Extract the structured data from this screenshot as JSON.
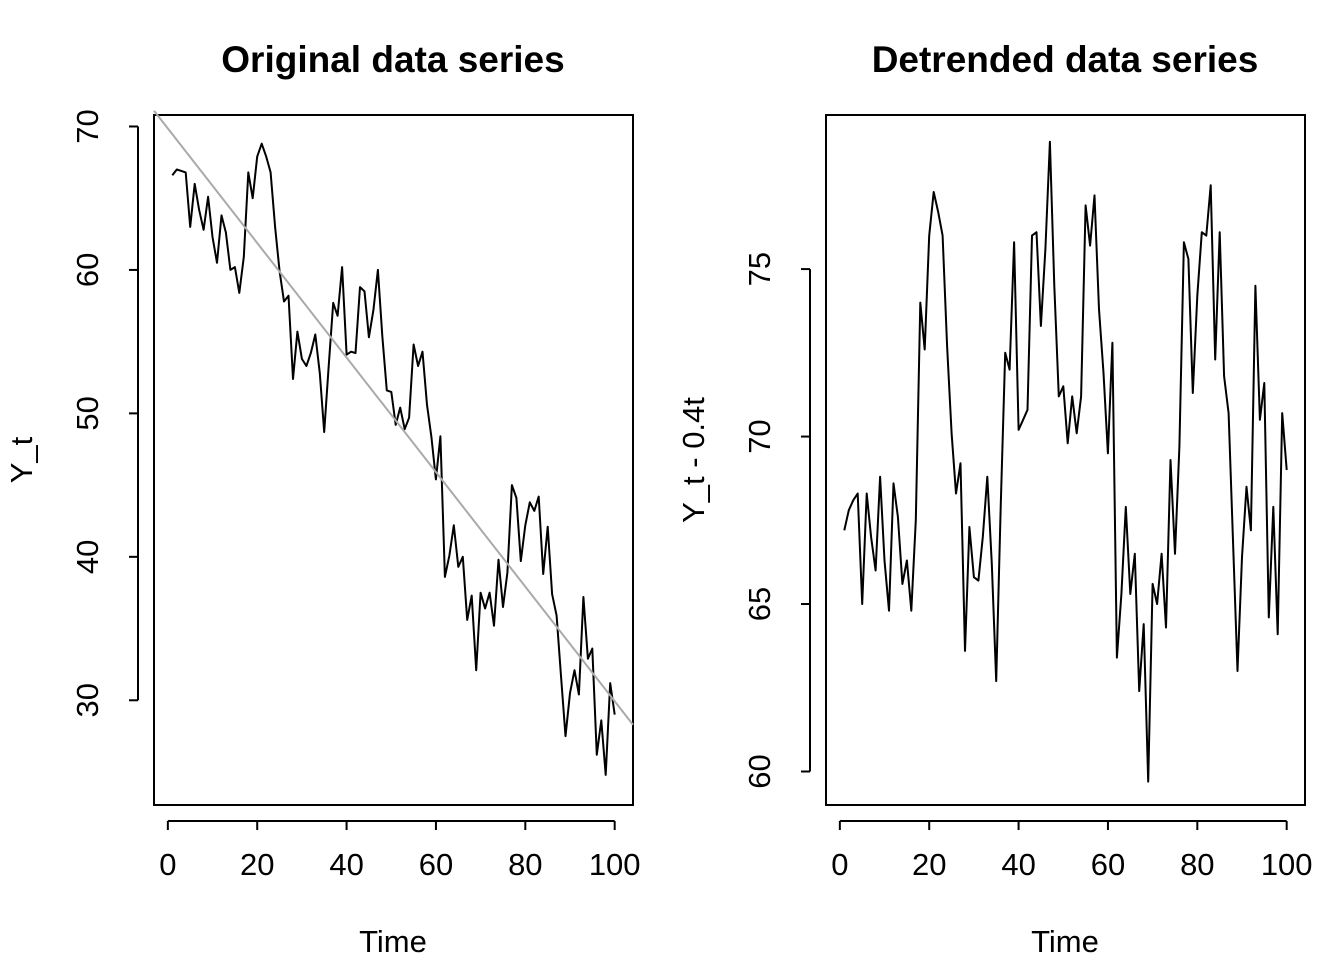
{
  "chart_data": [
    {
      "type": "line",
      "title": "Original data series",
      "xlabel": "Time",
      "ylabel": "Y_t",
      "xlim": [
        -3.1,
        104.1
      ],
      "ylim": [
        22.7,
        70.8
      ],
      "xticks": [
        0,
        20,
        40,
        60,
        80,
        100
      ],
      "yticks": [
        30,
        40,
        50,
        60,
        70
      ],
      "grid": false,
      "series": [
        {
          "color": "#000000",
          "x": [
            1,
            2,
            3,
            4,
            5,
            6,
            7,
            8,
            9,
            10,
            11,
            12,
            13,
            14,
            15,
            16,
            17,
            18,
            19,
            20,
            21,
            22,
            23,
            24,
            25,
            26,
            27,
            28,
            29,
            30,
            31,
            32,
            33,
            34,
            35,
            36,
            37,
            38,
            39,
            40,
            41,
            42,
            43,
            44,
            45,
            46,
            47,
            48,
            49,
            50,
            51,
            52,
            53,
            54,
            55,
            56,
            57,
            58,
            59,
            60,
            61,
            62,
            63,
            64,
            65,
            66,
            67,
            68,
            69,
            70,
            71,
            72,
            73,
            74,
            75,
            76,
            77,
            78,
            79,
            80,
            81,
            82,
            83,
            84,
            85,
            86,
            87,
            88,
            89,
            90,
            91,
            92,
            93,
            94,
            95,
            96,
            97,
            98,
            99,
            100
          ],
          "y": [
            66.6,
            67.0,
            66.9,
            66.8,
            63.0,
            66.0,
            64.2,
            62.8,
            65.1,
            62.3,
            60.5,
            63.8,
            62.6,
            60.0,
            60.2,
            58.4,
            60.9,
            66.8,
            65.0,
            67.9,
            68.8,
            67.9,
            66.8,
            63.0,
            59.9,
            57.8,
            58.2,
            52.4,
            55.7,
            53.8,
            53.3,
            54.2,
            55.5,
            52.8,
            48.7,
            53.3,
            57.7,
            56.8,
            60.2,
            54.1,
            54.3,
            54.2,
            58.8,
            58.5,
            55.3,
            57.2,
            60.0,
            55.4,
            51.6,
            51.5,
            49.2,
            50.4,
            48.9,
            49.7,
            54.8,
            53.3,
            54.3,
            50.6,
            48.3,
            45.4,
            48.4,
            38.6,
            40.1,
            42.2,
            39.3,
            40.0,
            35.6,
            37.3,
            32.1,
            37.5,
            36.4,
            37.5,
            35.2,
            39.8,
            36.5,
            38.9,
            45.0,
            44.1,
            39.7,
            42.2,
            43.8,
            43.2,
            44.2,
            38.8,
            42.1,
            37.4,
            35.9,
            31.6,
            27.5,
            30.5,
            32.1,
            30.4,
            37.2,
            32.9,
            33.6,
            26.2,
            28.6,
            24.8,
            31.2,
            29.0
          ]
        },
        {
          "color": "#aaaaaa",
          "x": [
            -3.1,
            104.1
          ],
          "y": [
            71.1,
            28.3
          ]
        }
      ]
    },
    {
      "type": "line",
      "title": "Detrended data series",
      "xlabel": "Time",
      "ylabel": "Y_t - 0.4t",
      "xlim": [
        -3.1,
        104.1
      ],
      "ylim": [
        59.0,
        79.6
      ],
      "xticks": [
        0,
        20,
        40,
        60,
        80,
        100
      ],
      "yticks": [
        60,
        65,
        70,
        75
      ],
      "grid": false,
      "series": [
        {
          "color": "#000000",
          "x": [
            1,
            2,
            3,
            4,
            5,
            6,
            7,
            8,
            9,
            10,
            11,
            12,
            13,
            14,
            15,
            16,
            17,
            18,
            19,
            20,
            21,
            22,
            23,
            24,
            25,
            26,
            27,
            28,
            29,
            30,
            31,
            32,
            33,
            34,
            35,
            36,
            37,
            38,
            39,
            40,
            41,
            42,
            43,
            44,
            45,
            46,
            47,
            48,
            49,
            50,
            51,
            52,
            53,
            54,
            55,
            56,
            57,
            58,
            59,
            60,
            61,
            62,
            63,
            64,
            65,
            66,
            67,
            68,
            69,
            70,
            71,
            72,
            73,
            74,
            75,
            76,
            77,
            78,
            79,
            80,
            81,
            82,
            83,
            84,
            85,
            86,
            87,
            88,
            89,
            90,
            91,
            92,
            93,
            94,
            95,
            96,
            97,
            98,
            99,
            100
          ],
          "y": [
            67.2,
            67.8,
            68.1,
            68.3,
            65.0,
            68.3,
            67.0,
            66.0,
            68.8,
            66.3,
            64.8,
            68.6,
            67.6,
            65.6,
            66.3,
            64.8,
            67.5,
            74.0,
            72.6,
            76.0,
            77.3,
            76.7,
            76.0,
            72.7,
            70.1,
            68.3,
            69.2,
            63.6,
            67.3,
            65.8,
            65.7,
            67.0,
            68.8,
            66.2,
            62.7,
            67.9,
            72.5,
            72.0,
            75.8,
            70.2,
            70.5,
            70.8,
            76.0,
            76.1,
            73.3,
            75.6,
            78.8,
            74.5,
            71.2,
            71.5,
            69.8,
            71.2,
            70.1,
            71.2,
            76.9,
            75.7,
            77.2,
            73.8,
            71.9,
            69.5,
            72.8,
            63.4,
            65.3,
            67.9,
            65.3,
            66.5,
            62.4,
            64.4,
            59.7,
            65.6,
            65.0,
            66.5,
            64.3,
            69.3,
            66.5,
            69.7,
            75.8,
            75.3,
            71.3,
            74.2,
            76.1,
            76.0,
            77.5,
            72.3,
            76.1,
            71.8,
            70.7,
            66.8,
            63.0,
            66.4,
            68.5,
            67.2,
            74.5,
            70.5,
            71.6,
            64.6,
            67.9,
            64.1,
            70.7,
            69.0
          ]
        }
      ]
    }
  ]
}
